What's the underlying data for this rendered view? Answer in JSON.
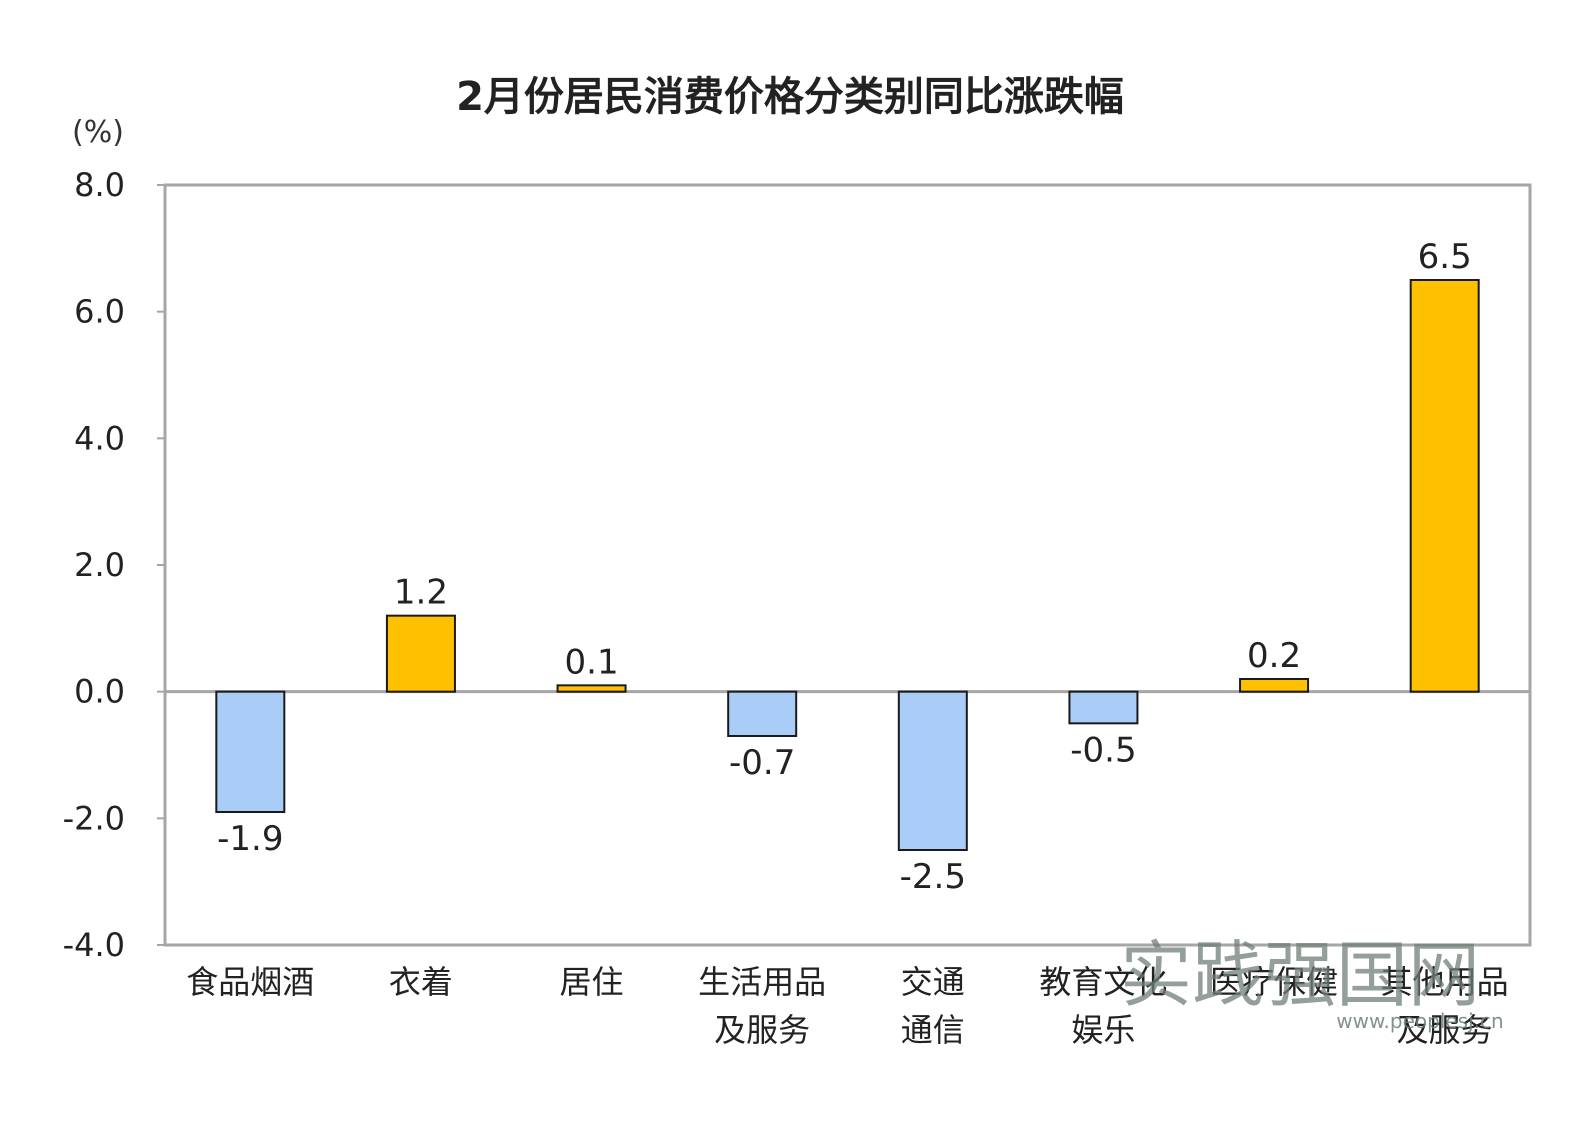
{
  "chart_data": {
    "type": "bar",
    "title": "2月份居民消费价格分类别同比涨跌幅",
    "unit_label": "(%)",
    "ylim": [
      -4.0,
      8.0
    ],
    "y_ticks": [
      "8.0",
      "6.0",
      "4.0",
      "2.0",
      "0.0",
      "-2.0",
      "-4.0"
    ],
    "y_tick_values": [
      8,
      6,
      4,
      2,
      0,
      -2,
      -4
    ],
    "categories": [
      [
        "食品烟酒"
      ],
      [
        "衣着"
      ],
      [
        "居住"
      ],
      [
        "生活用品",
        "及服务"
      ],
      [
        "交通",
        "通信"
      ],
      [
        "教育文化",
        "娱乐"
      ],
      [
        "医疗保健"
      ],
      [
        "其他用品",
        "及服务"
      ]
    ],
    "values": [
      -1.9,
      1.2,
      0.1,
      -0.7,
      -2.5,
      -0.5,
      0.2,
      6.5
    ],
    "value_labels": [
      "-1.9",
      "1.2",
      "0.1",
      "-0.7",
      "-2.5",
      "-0.5",
      "0.2",
      "6.5"
    ],
    "colors": {
      "positive": "#FFC000",
      "negative": "#A9CDF6",
      "bar_stroke": "#1a1a1a",
      "frame": "#a6a6a6",
      "zero_line": "#a6a6a6"
    },
    "grid": false
  },
  "watermark": {
    "text": "实践强国网",
    "url": "www.peoplesj.cn"
  }
}
